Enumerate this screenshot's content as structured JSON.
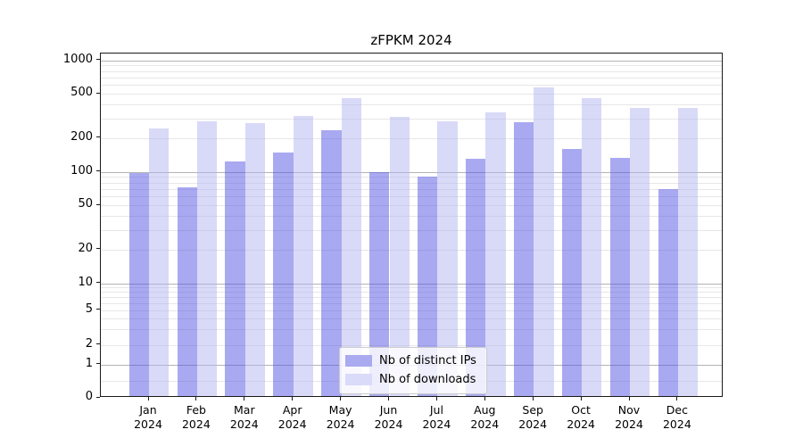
{
  "title": "zFPKM 2024",
  "legend": {
    "items": [
      {
        "label": "Nb of distinct IPs",
        "swatch_color": "#aaaaf1",
        "bar_fill": "rgba(84,84,228,0.5)"
      },
      {
        "label": "Nb of downloads",
        "swatch_color": "#dadaf9",
        "bar_fill": "rgba(180,180,242,0.5)"
      }
    ]
  },
  "axis": {
    "y_ticks": [
      {
        "value": 1000,
        "label": "1000"
      },
      {
        "value": 500,
        "label": "500"
      },
      {
        "value": 200,
        "label": "200"
      },
      {
        "value": 100,
        "label": "100"
      },
      {
        "value": 50,
        "label": "50"
      },
      {
        "value": 20,
        "label": "20"
      },
      {
        "value": 10,
        "label": "10"
      },
      {
        "value": 5,
        "label": "5"
      },
      {
        "value": 2,
        "label": "2"
      },
      {
        "value": 1,
        "label": "1"
      },
      {
        "value": 0,
        "label": "0"
      }
    ],
    "gridlines": {
      "major": [
        1,
        10,
        100,
        1000
      ],
      "minor": [
        0.5,
        2,
        3,
        4,
        5,
        6,
        7,
        8,
        9,
        20,
        30,
        40,
        50,
        60,
        70,
        80,
        90,
        200,
        300,
        400,
        500,
        600,
        700,
        800,
        900
      ]
    },
    "x_tick_year": "2024"
  },
  "chart_data": {
    "type": "bar",
    "title": "zFPKM 2024",
    "categories": [
      "Jan",
      "Feb",
      "Mar",
      "Apr",
      "May",
      "Jun",
      "Jul",
      "Aug",
      "Sep",
      "Oct",
      "Nov",
      "Dec"
    ],
    "categories_year": "2024",
    "series": [
      {
        "name": "Nb of distinct IPs",
        "values": [
          93,
          70,
          120,
          142,
          228,
          95,
          87,
          125,
          270,
          153,
          129,
          67
        ]
      },
      {
        "name": "Nb of downloads",
        "values": [
          235,
          275,
          262,
          305,
          440,
          297,
          272,
          330,
          550,
          440,
          360,
          360
        ]
      }
    ],
    "xlabel": "",
    "ylabel": "",
    "yscale": "symlog",
    "ylim": [
      0,
      1160
    ],
    "grid": true,
    "legend_position": "lower center"
  }
}
